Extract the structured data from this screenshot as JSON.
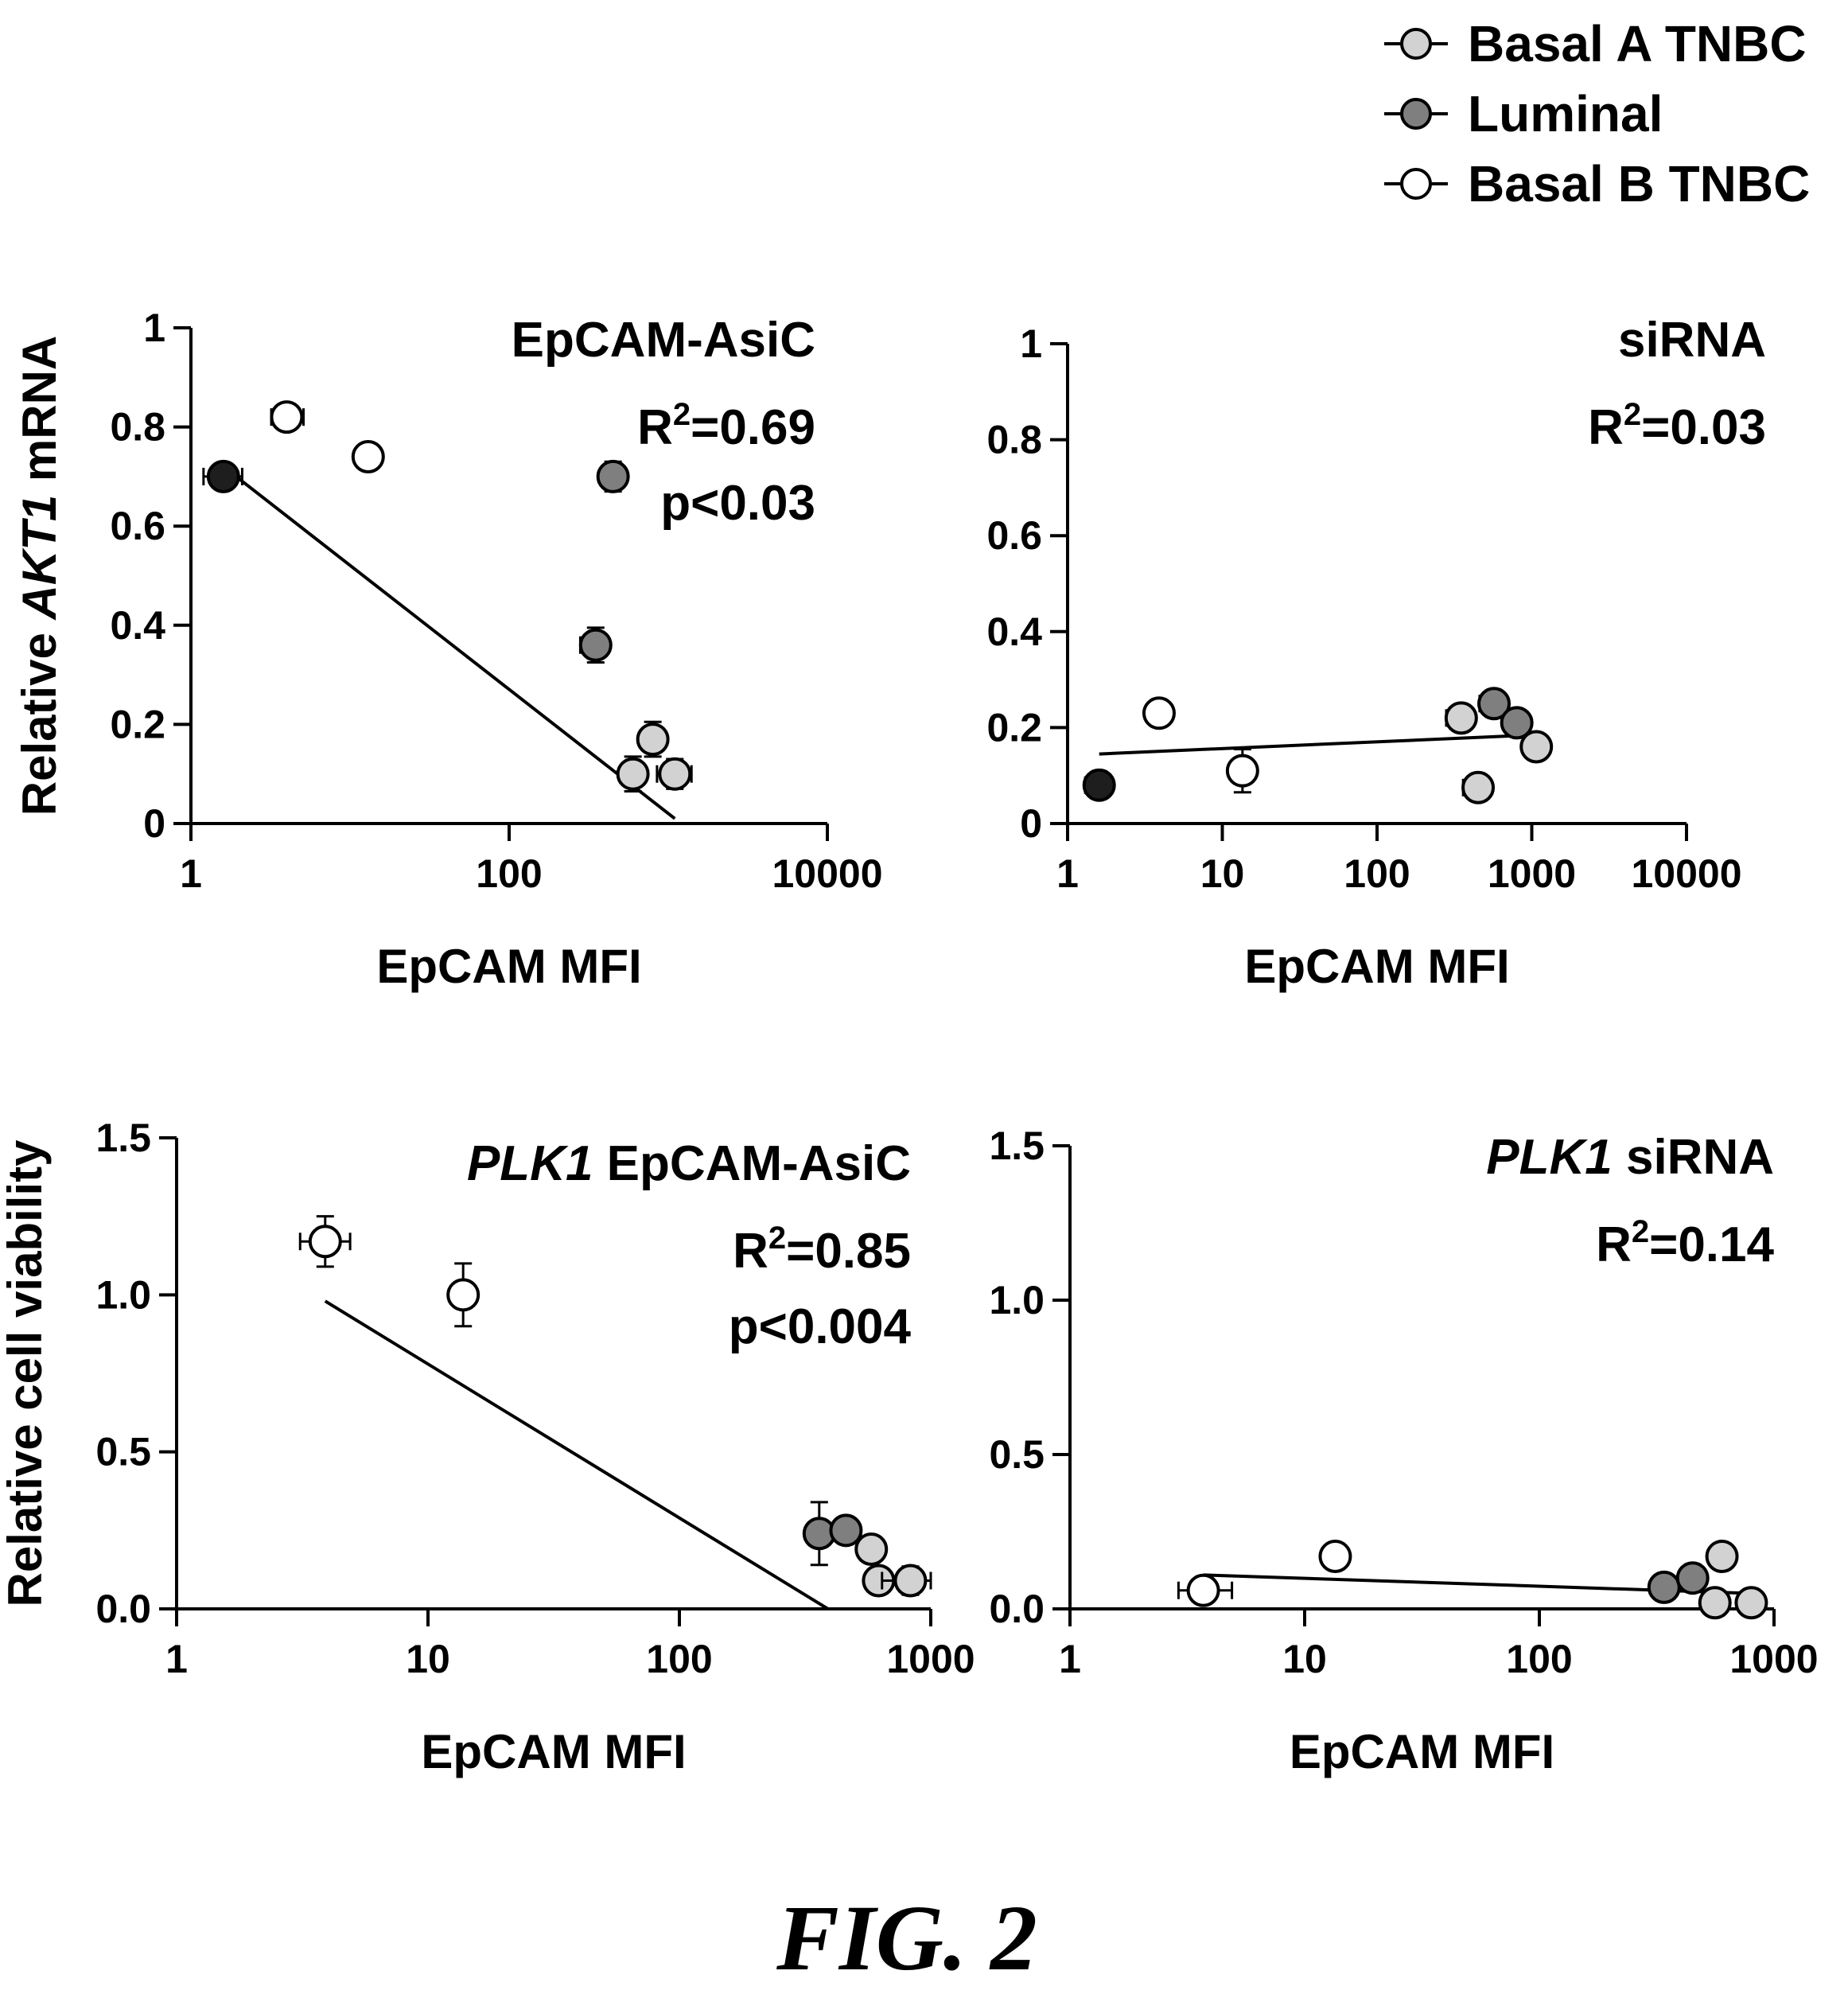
{
  "legend": {
    "items": [
      {
        "label": "Basal A TNBC",
        "color": "#d2d2d2"
      },
      {
        "label": "Luminal",
        "color": "#7f7f7f"
      },
      {
        "label": "Basal B TNBC",
        "color": "#ffffff"
      }
    ]
  },
  "caption": "FIG. 2",
  "chart_data": [
    {
      "type": "scatter",
      "x_scale": "log",
      "xlim": [
        1,
        10000
      ],
      "ylim": [
        0,
        1
      ],
      "x_ticks": [
        1,
        100,
        10000
      ],
      "x_tick_labels": [
        "1",
        "100",
        "10000"
      ],
      "y_ticks": [
        0,
        0.2,
        0.4,
        0.6,
        0.8,
        1
      ],
      "y_tick_labels": [
        "0",
        "0.2",
        "0.4",
        "0.6",
        "0.8",
        "1"
      ],
      "xlabel": "EpCAM MFI",
      "ylabel": {
        "prefix": "Relative ",
        "italic": "AKT1",
        "suffix": " mRNA"
      },
      "annotation": {
        "title_italic": "",
        "title": "EpCAM-AsiC",
        "r2": "=0.69",
        "p": "p<0.03"
      },
      "fit": {
        "x": [
          1.6,
          1100
        ],
        "y": [
          0.72,
          0.01
        ]
      },
      "points": [
        {
          "group": "Luminal",
          "x": 1.6,
          "y": 0.7,
          "xerr": [
            1.2,
            2.1
          ],
          "yerr": 0.015,
          "color": "#1e1e1e"
        },
        {
          "group": "Basal B TNBC",
          "x": 4,
          "y": 0.82,
          "xerr": [
            3.2,
            5.1
          ],
          "yerr": 0.025
        },
        {
          "group": "Basal B TNBC",
          "x": 13,
          "y": 0.74,
          "xerr": [
            12,
            14
          ],
          "yerr": 0.025
        },
        {
          "group": "Luminal",
          "x": 450,
          "y": 0.7,
          "xerr": [
            420,
            480
          ],
          "yerr": 0.03,
          "special": "marker"
        },
        {
          "group": "Luminal",
          "x": 350,
          "y": 0.36,
          "xerr": [
            280,
            420
          ],
          "yerr": 0.035
        },
        {
          "group": "Basal A TNBC",
          "x": 800,
          "y": 0.17,
          "xerr": [
            700,
            900
          ],
          "yerr": 0.035
        },
        {
          "group": "Basal A TNBC",
          "x": 600,
          "y": 0.1,
          "xerr": [
            560,
            650
          ],
          "yerr": 0.035
        },
        {
          "group": "Basal A TNBC",
          "x": 1100,
          "y": 0.1,
          "xerr": [
            850,
            1400
          ],
          "yerr": 0.03
        }
      ]
    },
    {
      "type": "scatter",
      "x_scale": "log",
      "xlim": [
        1,
        10000
      ],
      "ylim": [
        0,
        1
      ],
      "x_ticks": [
        1,
        10,
        100,
        1000,
        10000
      ],
      "x_tick_labels": [
        "1",
        "10",
        "100",
        "1000",
        "10000"
      ],
      "y_ticks": [
        0,
        0.2,
        0.4,
        0.6,
        0.8,
        1
      ],
      "y_tick_labels": [
        "0",
        "0.2",
        "0.4",
        "0.6",
        "0.8",
        "1"
      ],
      "xlabel": "EpCAM MFI",
      "ylabel": null,
      "annotation": {
        "title_italic": "",
        "title": "siRNA",
        "r2": "=0.03",
        "p": ""
      },
      "fit": {
        "x": [
          1.6,
          1100
        ],
        "y": [
          0.145,
          0.185
        ]
      },
      "points": [
        {
          "group": "Luminal",
          "x": 1.6,
          "y": 0.08,
          "xerr": [
            1.3,
            1.9
          ],
          "yerr": 0.01,
          "color": "#1e1e1e"
        },
        {
          "group": "Basal B TNBC",
          "x": 3.9,
          "y": 0.23,
          "xerr": [
            3.3,
            4.6
          ],
          "yerr": 0.02
        },
        {
          "group": "Basal B TNBC",
          "x": 13.5,
          "y": 0.11,
          "xerr": [
            12,
            15
          ],
          "yerr": 0.045
        },
        {
          "group": "Basal A TNBC",
          "x": 350,
          "y": 0.22,
          "xerr": [
            280,
            420
          ],
          "yerr": 0.02
        },
        {
          "group": "Luminal",
          "x": 570,
          "y": 0.25,
          "xerr": [
            460,
            680
          ],
          "yerr": 0.02
        },
        {
          "group": "Luminal",
          "x": 800,
          "y": 0.21,
          "xerr": [
            700,
            900
          ],
          "yerr": 0.02
        },
        {
          "group": "Basal A TNBC",
          "x": 1070,
          "y": 0.16,
          "xerr": [
            900,
            1250
          ],
          "yerr": 0.02
        },
        {
          "group": "Basal A TNBC",
          "x": 450,
          "y": 0.075,
          "xerr": [
            360,
            540
          ],
          "yerr": 0.015
        }
      ]
    },
    {
      "type": "scatter",
      "x_scale": "log",
      "xlim": [
        1,
        1000
      ],
      "ylim": [
        0,
        1.5
      ],
      "x_ticks": [
        1,
        10,
        100,
        1000
      ],
      "x_tick_labels": [
        "1",
        "10",
        "100",
        "1000"
      ],
      "y_ticks": [
        0,
        0.5,
        1.0,
        1.5
      ],
      "y_tick_labels": [
        "0.0",
        "0.5",
        "1.0",
        "1.5"
      ],
      "xlabel": "EpCAM MFI",
      "ylabel": {
        "prefix": "Relative cell viability",
        "italic": "",
        "suffix": ""
      },
      "annotation": {
        "title_italic": "PLK1",
        "title": " EpCAM-AsiC",
        "r2": "=0.85",
        "p": "p<0.004"
      },
      "fit": {
        "x": [
          3.9,
          390
        ],
        "y": [
          0.98,
          0.0
        ]
      },
      "points": [
        {
          "group": "Basal B TNBC",
          "x": 3.9,
          "y": 1.17,
          "xerr": [
            3.1,
            4.9
          ],
          "yerr": 0.08
        },
        {
          "group": "Basal B TNBC",
          "x": 13.8,
          "y": 1.0,
          "xerr": [
            13.3,
            14.3
          ],
          "yerr": 0.1
        },
        {
          "group": "Luminal",
          "x": 360,
          "y": 0.24,
          "xerr": [
            330,
            390
          ],
          "yerr": 0.1
        },
        {
          "group": "Luminal",
          "x": 460,
          "y": 0.25,
          "xerr": [
            420,
            500
          ],
          "yerr": 0.03
        },
        {
          "group": "Basal A TNBC",
          "x": 580,
          "y": 0.19,
          "xerr": [
            530,
            630
          ],
          "yerr": 0.03
        },
        {
          "group": "Basal A TNBC",
          "x": 620,
          "y": 0.09,
          "xerr": [
            560,
            680
          ],
          "yerr": 0.03
        },
        {
          "group": "Basal A TNBC",
          "x": 830,
          "y": 0.09,
          "xerr": [
            640,
            1000
          ],
          "yerr": 0.045
        }
      ]
    },
    {
      "type": "scatter",
      "x_scale": "log",
      "xlim": [
        1,
        1000
      ],
      "ylim": [
        0,
        1.5
      ],
      "x_ticks": [
        1,
        10,
        100,
        1000
      ],
      "x_tick_labels": [
        "1",
        "10",
        "100",
        "1000"
      ],
      "y_ticks": [
        0,
        0.5,
        1.0,
        1.5
      ],
      "y_tick_labels": [
        "0.0",
        "0.5",
        "1.0",
        "1.5"
      ],
      "xlabel": "EpCAM MFI",
      "ylabel": null,
      "annotation": {
        "title_italic": "PLK1",
        "title": " siRNA",
        "r2": "=0.14",
        "p": ""
      },
      "fit": {
        "x": [
          3.7,
          820
        ],
        "y": [
          0.11,
          0.05
        ]
      },
      "points": [
        {
          "group": "Basal B TNBC",
          "x": 3.7,
          "y": 0.06,
          "xerr": [
            2.9,
            4.9
          ],
          "yerr": 0.03
        },
        {
          "group": "Basal B TNBC",
          "x": 13.5,
          "y": 0.17,
          "xerr": [
            12.5,
            14.5
          ],
          "yerr": 0.03
        },
        {
          "group": "Luminal",
          "x": 340,
          "y": 0.07,
          "xerr": [
            310,
            370
          ],
          "yerr": 0.02
        },
        {
          "group": "Luminal",
          "x": 450,
          "y": 0.1,
          "xerr": [
            410,
            490
          ],
          "yerr": 0.03
        },
        {
          "group": "Basal A TNBC",
          "x": 600,
          "y": 0.17,
          "xerr": [
            540,
            660
          ],
          "yerr": 0.03
        },
        {
          "group": "Basal A TNBC",
          "x": 560,
          "y": 0.02,
          "xerr": [
            510,
            610
          ],
          "yerr": 0.02
        },
        {
          "group": "Basal A TNBC",
          "x": 800,
          "y": 0.02,
          "xerr": [
            720,
            880
          ],
          "yerr": 0.02
        }
      ]
    }
  ]
}
